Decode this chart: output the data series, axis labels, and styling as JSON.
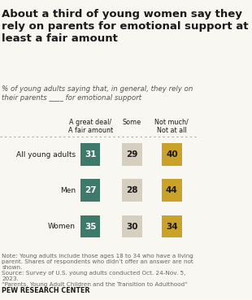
{
  "title": "About a third of young women say they\nrely on parents for emotional support at\nleast a fair amount",
  "subtitle": "% of young adults saying that, in general, they rely on\ntheir parents ____ for emotional support",
  "col_headers": [
    "A great deal/\nA fair amount",
    "Some",
    "Not much/\nNot at all"
  ],
  "rows": [
    {
      "label": "All young adults",
      "values": [
        31,
        29,
        40
      ]
    },
    {
      "label": "Men",
      "values": [
        27,
        28,
        44
      ]
    },
    {
      "label": "Women",
      "values": [
        35,
        30,
        34
      ]
    }
  ],
  "colors": [
    "#3d7a6b",
    "#d5cfc0",
    "#c9a227"
  ],
  "note": "Note: Young adults include those ages 18 to 34 who have a living\nparent. Shares of respondents who didn’t offer an answer are not\nshown.\nSource: Survey of U.S. young adults conducted Oct. 24-Nov. 5,\n2023.\n“Parents, Young Adult Children and the Transition to Adulthood”",
  "footer": "PEW RESEARCH CENTER",
  "bg_color": "#f9f7f2",
  "title_color": "#1a1a1a",
  "subtitle_color": "#555555",
  "label_color": "#1a1a1a",
  "note_color": "#666666",
  "footer_color": "#1a1a1a",
  "separator_color": "#aaaaaa"
}
